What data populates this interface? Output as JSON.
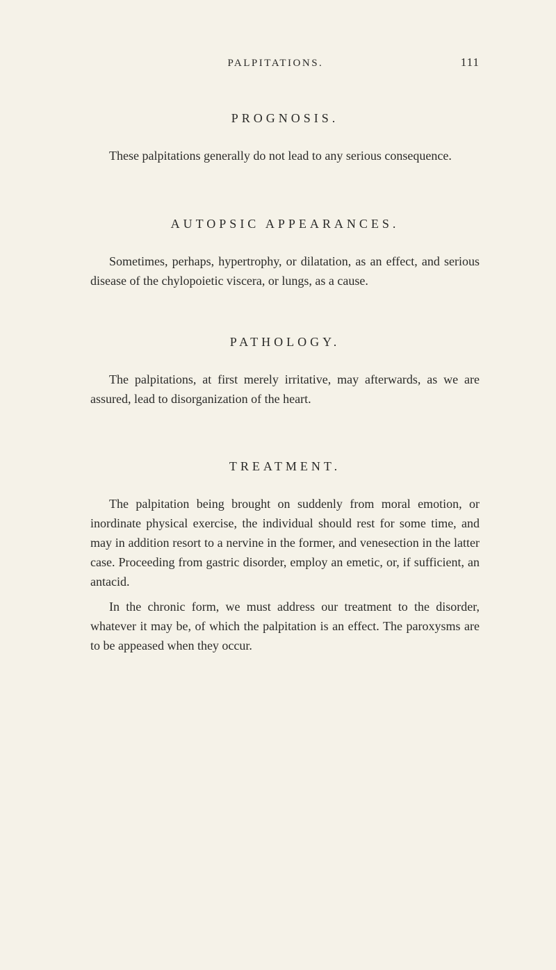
{
  "header": {
    "running_head": "PALPITATIONS.",
    "page_number": "111"
  },
  "sections": {
    "prognosis": {
      "heading": "PROGNOSIS.",
      "body": "These palpitations generally do not lead to any serious consequence."
    },
    "autopsic": {
      "heading": "AUTOPSIC APPEARANCES.",
      "body": "Sometimes, perhaps, hypertrophy, or dilatation, as an effect, and serious disease of the chylopoietic viscera, or lungs, as a cause."
    },
    "pathology": {
      "heading": "PATHOLOGY.",
      "body": "The palpitations, at first merely irritative, may afterwards, as we are assured, lead to disorganization of the heart."
    },
    "treatment": {
      "heading": "TREATMENT.",
      "body1": "The palpitation being brought on suddenly from moral emotion, or inordinate physical exercise, the individual should rest for some time, and may in addition resort to a nervine in the former, and venesection in the latter case. Proceeding from gastric disorder, employ an emetic, or, if sufficient, an antacid.",
      "body2": "In the chronic form, we must address our treatment to the disorder, whatever it may be, of which the palpitation is an effect. The paroxysms are to be appeased when they occur."
    }
  }
}
